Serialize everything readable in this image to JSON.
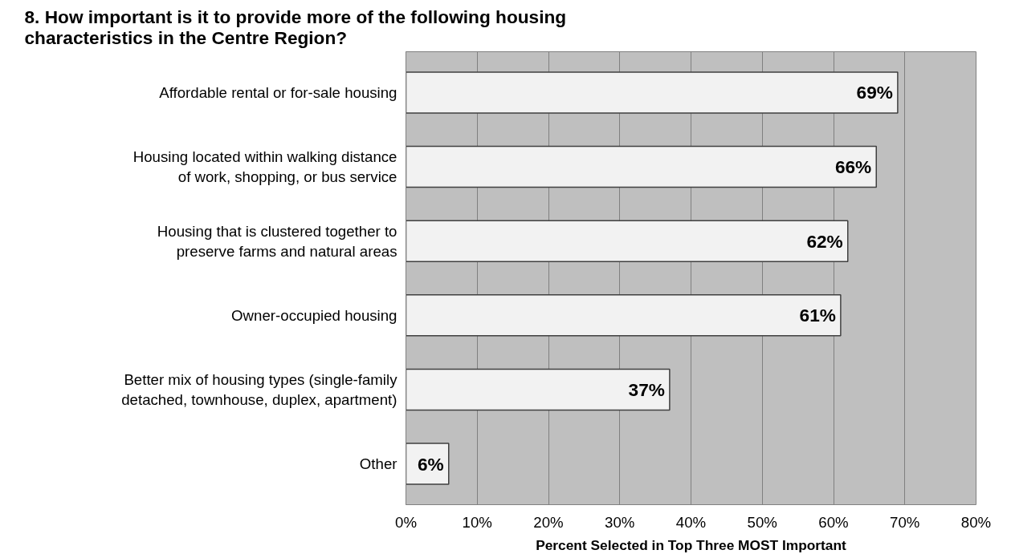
{
  "chart_data": {
    "type": "bar",
    "orientation": "horizontal",
    "title": "8. How important is it to provide more of the following housing\ncharacteristics in the Centre Region?",
    "xlabel": "Percent Selected in Top Three MOST Important",
    "categories": [
      "Affordable rental or for-sale housing",
      "Housing located within walking distance\nof work, shopping, or bus service",
      "Housing that is clustered together to\npreserve farms and natural areas",
      "Owner-occupied housing",
      "Better mix of housing types (single-family\ndetached, townhouse, duplex, apartment)",
      "Other"
    ],
    "values": [
      69,
      66,
      62,
      61,
      37,
      6
    ],
    "value_labels": [
      "69%",
      "66%",
      "62%",
      "61%",
      "37%",
      "6%"
    ],
    "color": "#f2f2f2",
    "xlim": [
      0,
      80
    ],
    "xticks": [
      {
        "value": 0,
        "label": "0%"
      },
      {
        "value": 10,
        "label": "10%"
      },
      {
        "value": 20,
        "label": "20%"
      },
      {
        "value": 30,
        "label": "30%"
      },
      {
        "value": 40,
        "label": "40%"
      },
      {
        "value": 50,
        "label": "50%"
      },
      {
        "value": 60,
        "label": "60%"
      },
      {
        "value": 70,
        "label": "70%"
      },
      {
        "value": 80,
        "label": "80%"
      }
    ],
    "grid": "x"
  }
}
